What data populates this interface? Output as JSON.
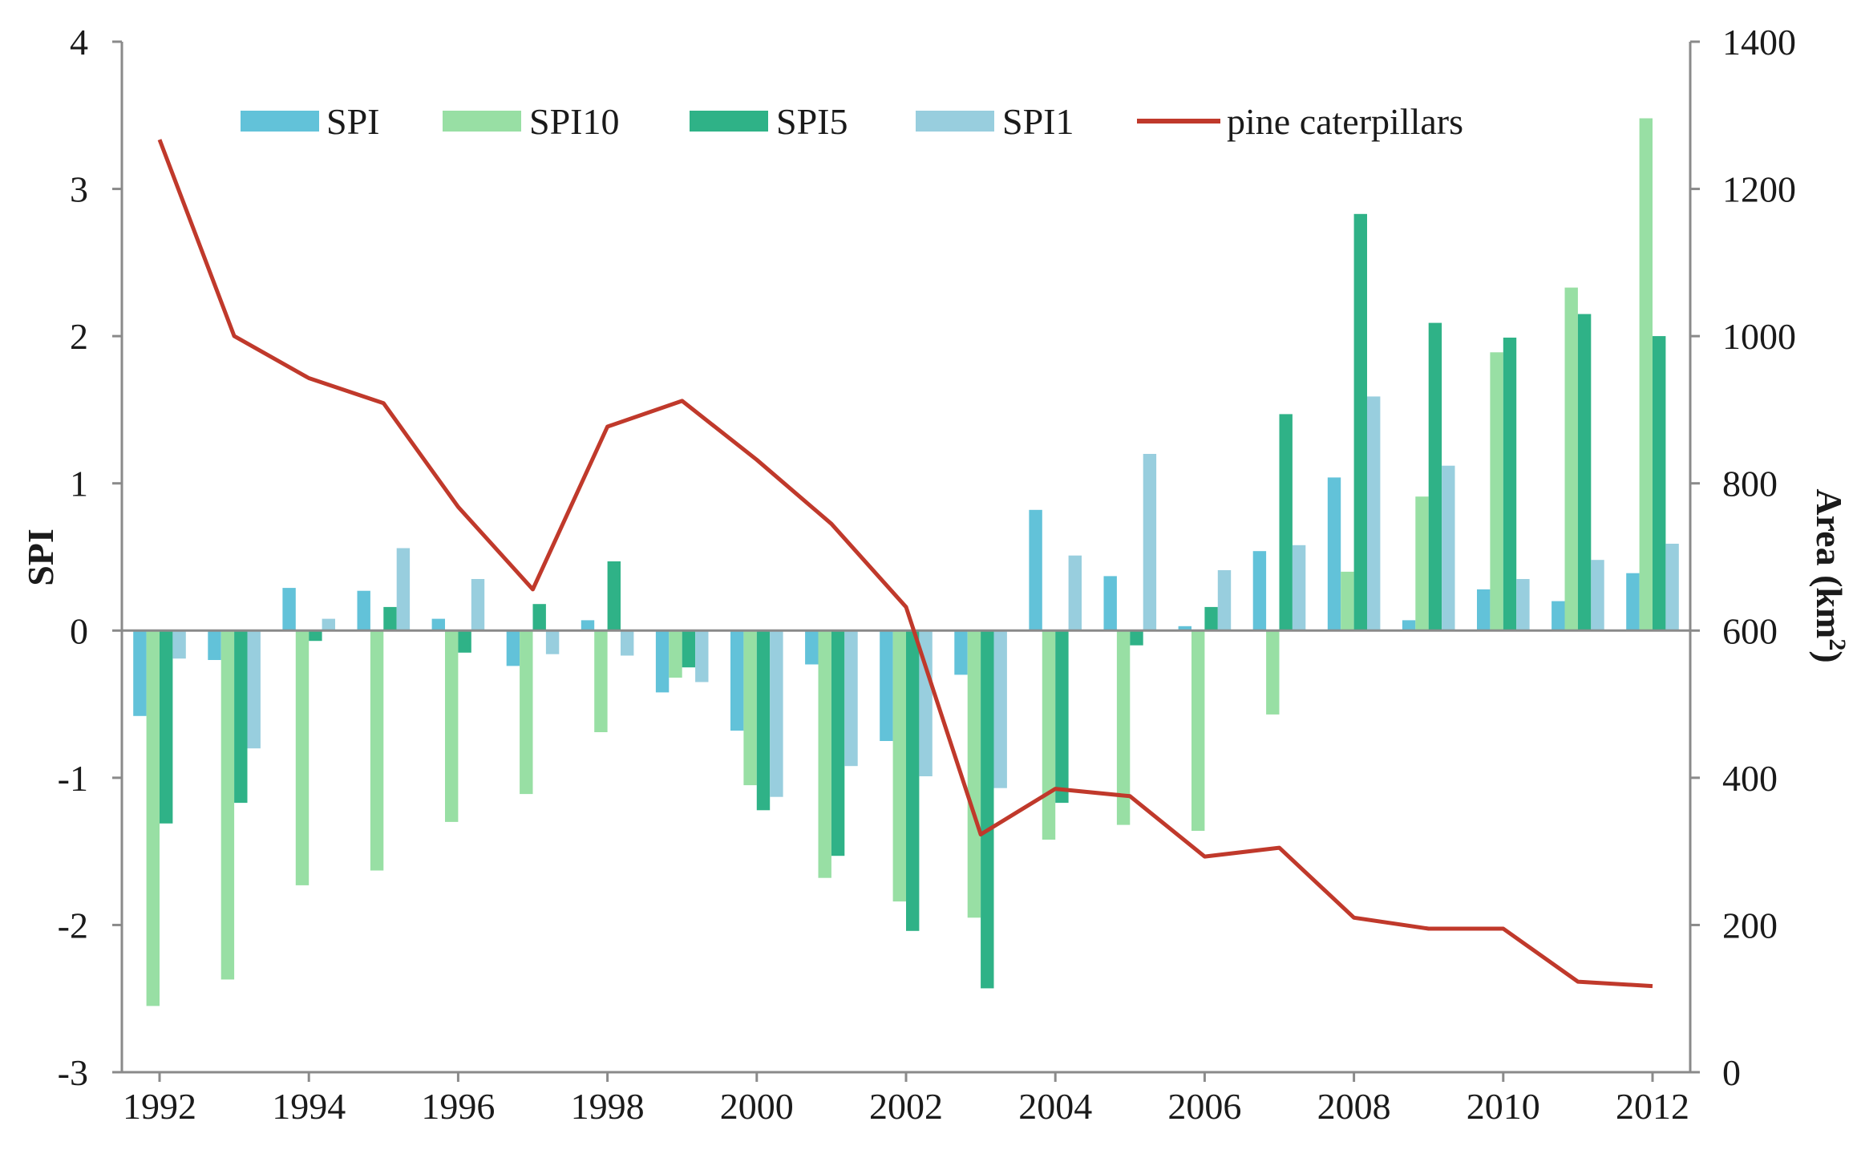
{
  "chart_data": {
    "type": "bar",
    "title": "",
    "x": [
      "1992",
      "1993",
      "1994",
      "1995",
      "1996",
      "1997",
      "1998",
      "1999",
      "2000",
      "2001",
      "2002",
      "2003",
      "2004",
      "2005",
      "2006",
      "2007",
      "2008",
      "2009",
      "2010",
      "2011",
      "2012"
    ],
    "xtick_labels": [
      "1992",
      "1994",
      "1996",
      "1998",
      "2000",
      "2002",
      "2004",
      "2006",
      "2008",
      "2010",
      "2012"
    ],
    "ylabel": "SPI",
    "y2label": "Area (km",
    "y2label_sup": "2",
    "y2label_end": ")",
    "ylim": [
      -3,
      4
    ],
    "y2lim": [
      0,
      1400
    ],
    "yticks": [
      "4",
      "3",
      "2",
      "1",
      "0",
      "-1",
      "-2",
      "-3"
    ],
    "y2ticks": [
      "1400",
      "1200",
      "1000",
      "800",
      "600",
      "400",
      "200",
      "0"
    ],
    "legend_position": "top",
    "series": [
      {
        "name": "SPI",
        "color": "#62c2d9",
        "values": [
          -0.58,
          -0.2,
          0.29,
          0.27,
          0.08,
          -0.24,
          0.07,
          -0.42,
          -0.68,
          -0.23,
          -0.75,
          -0.3,
          0.82,
          0.37,
          0.03,
          0.54,
          1.04,
          0.07,
          0.28,
          0.2,
          0.39
        ]
      },
      {
        "name": "SPI10",
        "color": "#98dfa4",
        "values": [
          -2.55,
          -2.37,
          -1.73,
          -1.63,
          -1.3,
          -1.11,
          -0.69,
          -0.32,
          -1.05,
          -1.68,
          -1.84,
          -1.95,
          -1.42,
          -1.32,
          -1.36,
          -0.57,
          0.4,
          0.91,
          1.89,
          2.33,
          3.48
        ]
      },
      {
        "name": "SPI5",
        "color": "#2fb287",
        "values": [
          -1.31,
          -1.17,
          -0.07,
          0.16,
          -0.15,
          0.18,
          0.47,
          -0.25,
          -1.22,
          -1.53,
          -2.04,
          -2.43,
          -1.17,
          -0.1,
          0.16,
          1.47,
          2.83,
          2.09,
          1.99,
          2.15,
          2.0
        ]
      },
      {
        "name": "SPI1",
        "color": "#98cede",
        "values": [
          -0.19,
          -0.8,
          0.08,
          0.56,
          0.35,
          -0.16,
          -0.17,
          -0.35,
          -1.13,
          -0.92,
          -0.99,
          -1.07,
          0.51,
          1.2,
          0.41,
          0.58,
          1.59,
          1.12,
          0.35,
          0.48,
          0.59
        ]
      }
    ],
    "line": {
      "name": "pine caterpillars",
      "color": "#c0392b",
      "values": [
        1267,
        1000,
        943,
        909,
        768,
        656,
        877,
        912,
        832,
        745,
        632,
        323,
        385,
        375,
        293,
        305,
        210,
        195,
        195,
        123,
        117
      ]
    }
  }
}
